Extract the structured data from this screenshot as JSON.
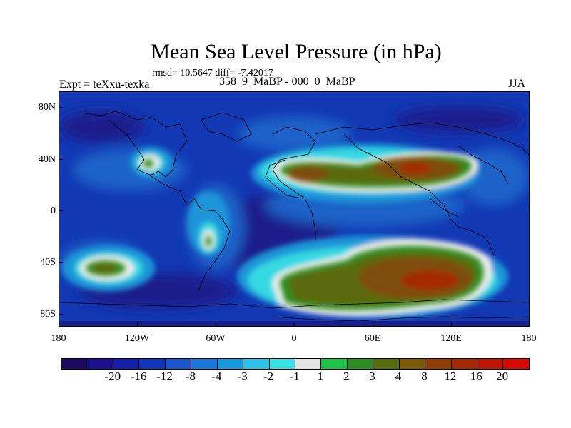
{
  "header": {
    "title": "Mean Sea Level Pressure (in hPa)",
    "stats": "rmsd= 10.5647 diff= -7.42017",
    "period": "358_9_MaBP - 000_0_MaBP",
    "experiment": "Expt = teXxu-texka",
    "season": "JJA"
  },
  "axes": {
    "y_ticks": [
      "80N",
      "40N",
      "0",
      "40S",
      "80S"
    ],
    "x_ticks": [
      "180",
      "120W",
      "60W",
      "0",
      "60E",
      "120E",
      "180"
    ]
  },
  "colorbar": {
    "colors": [
      "#1a0a5e",
      "#1e0f8c",
      "#1520a6",
      "#1236b8",
      "#1c56c8",
      "#1c77d6",
      "#1899dc",
      "#2fc2e6",
      "#3ae2e4",
      "#e4e4e4",
      "#1fc24a",
      "#2f8c22",
      "#566c0e",
      "#7a5a08",
      "#8e3e06",
      "#a42a06",
      "#bc1406",
      "#d40a06"
    ],
    "labels": [
      "-20",
      "-16",
      "-12",
      "-8",
      "-4",
      "-3",
      "-2",
      "-1",
      "1",
      "2",
      "3",
      "4",
      "8",
      "12",
      "16",
      "20"
    ]
  },
  "map": {
    "fields": {
      "background": "#1238b4",
      "deep_low": "#1a1e8c",
      "mid_blue": "#1c62c8",
      "light_blue": "#1a95d8",
      "cyan": "#36d9e2",
      "white": "#f0f0f0",
      "green": "#2f8c22",
      "olive": "#5a6a10",
      "brown": "#7e4e08",
      "red_core": "#a42a06"
    }
  }
}
